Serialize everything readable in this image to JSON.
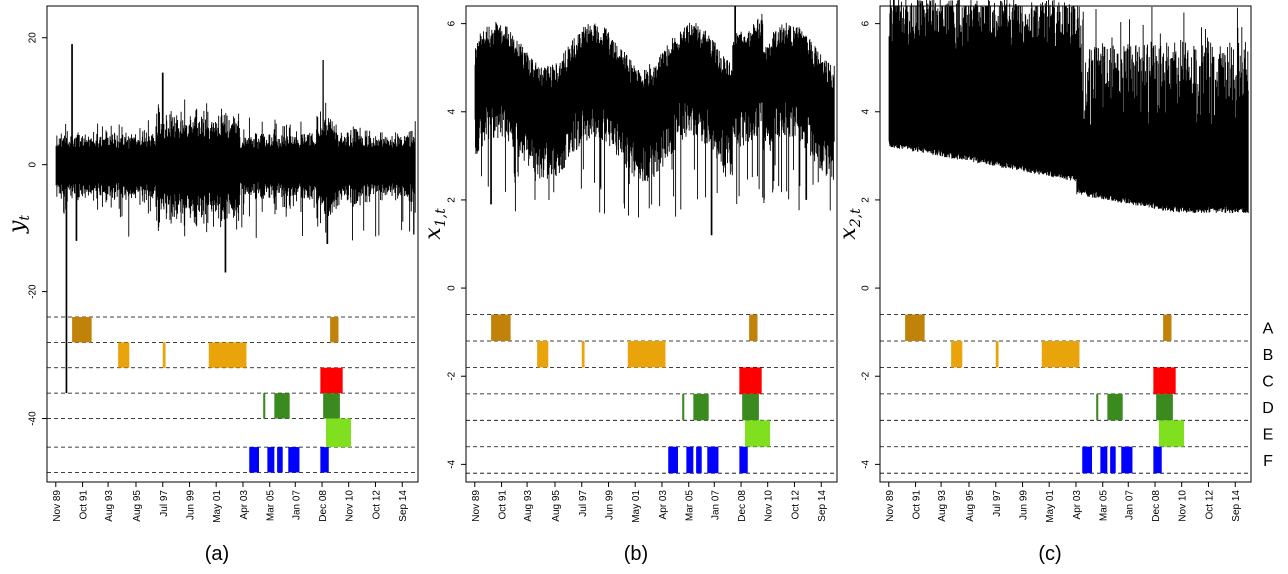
{
  "chart_data": [
    {
      "type": "line",
      "panel_label": "(a)",
      "ylabel_base": "y",
      "ylabel_sub": "t",
      "ylim": [
        -50,
        25
      ],
      "yticks": [
        20,
        0,
        -20,
        -40
      ],
      "ytick_labels": [
        "20",
        "0",
        "-20",
        "-40"
      ],
      "series_levels": {
        "center": 0,
        "typical_amplitude": 2.5,
        "spikes": [
          [
            1990.6,
            -36
          ],
          [
            1991.0,
            19
          ],
          [
            1991.3,
            -12
          ],
          [
            1997.5,
            14.5
          ],
          [
            2002.0,
            -17
          ],
          [
            2009.0,
            16.5
          ],
          [
            2009.3,
            -12.5
          ],
          [
            2015.5,
            -11
          ]
        ]
      },
      "regime_bands_y": [
        -24,
        -28,
        -32,
        -36,
        -40,
        -44.5,
        -48.5
      ]
    },
    {
      "type": "line",
      "panel_label": "(b)",
      "ylabel_base": "x",
      "ylabel_sub": "1,t",
      "ylim": [
        -4.4,
        6.4
      ],
      "yticks": [
        6,
        4,
        2,
        0,
        -2,
        -4
      ],
      "ytick_labels": [
        "6",
        "4",
        "2",
        "0",
        "-2",
        "-4"
      ],
      "series_levels": {
        "center": 4.5,
        "typical_amplitude": 0.8,
        "spikes": [
          [
            2008.5,
            6.4
          ],
          [
            2013.6,
            2.0
          ],
          [
            2006.8,
            1.2
          ],
          [
            1991.0,
            1.9
          ]
        ]
      },
      "regime_bands_y": [
        -0.6,
        -1.2,
        -1.8,
        -2.4,
        -3.0,
        -3.6,
        -4.2
      ]
    },
    {
      "type": "line",
      "panel_label": "(c)",
      "ylabel_base": "x",
      "ylabel_sub": "2,t",
      "ylim": [
        -4.4,
        6.4
      ],
      "yticks": [
        6,
        4,
        2,
        0,
        -2,
        -4
      ],
      "ytick_labels": [
        "6",
        "4",
        "2",
        "0",
        "-2",
        "-4"
      ],
      "series_levels": {
        "top": 6.4,
        "lower_start": 3.2,
        "lower_end": 1.7
      },
      "regime_bands_y": [
        -0.6,
        -1.2,
        -1.8,
        -2.4,
        -3.0,
        -3.6,
        -4.2
      ]
    }
  ],
  "xaxis": {
    "xlim": [
      1989.2,
      2015.8
    ],
    "ticks": [
      1989.83,
      1991.75,
      1993.58,
      1995.58,
      1997.5,
      1999.42,
      2001.33,
      2003.25,
      2005.17,
      2007.0,
      2008.92,
      2010.83,
      2012.75,
      2014.67
    ],
    "tick_labels": [
      "Nov 89",
      "Oct 91",
      "Aug 93",
      "Aug 95",
      "Jul 97",
      "Jun 99",
      "May 01",
      "Apr 03",
      "Mar 05",
      "Jan 07",
      "Dec 08",
      "Nov 10",
      "Oct 12",
      "Sep 14"
    ]
  },
  "regimes": [
    {
      "label": "A",
      "color": "#c08209",
      "segments": [
        [
          1991.0,
          1992.4
        ],
        [
          2009.5,
          2010.1
        ]
      ]
    },
    {
      "label": "B",
      "color": "#e8a40a",
      "segments": [
        [
          1994.3,
          1995.1
        ],
        [
          1997.5,
          1997.7
        ],
        [
          2000.8,
          2003.5
        ]
      ]
    },
    {
      "label": "C",
      "color": "#ff0000",
      "segments": [
        [
          2008.8,
          2010.4
        ]
      ]
    },
    {
      "label": "D",
      "color": "#3a8a20",
      "segments": [
        [
          2004.7,
          2004.85
        ],
        [
          2005.5,
          2006.6
        ],
        [
          2009.0,
          2010.2
        ]
      ]
    },
    {
      "label": "E",
      "color": "#80e020",
      "segments": [
        [
          2009.2,
          2011.0
        ]
      ]
    },
    {
      "label": "F",
      "color": "#0000ff",
      "segments": [
        [
          2003.7,
          2004.4
        ],
        [
          2005.0,
          2005.5
        ],
        [
          2005.7,
          2006.1
        ],
        [
          2006.5,
          2007.3
        ],
        [
          2008.8,
          2009.4
        ]
      ]
    }
  ]
}
